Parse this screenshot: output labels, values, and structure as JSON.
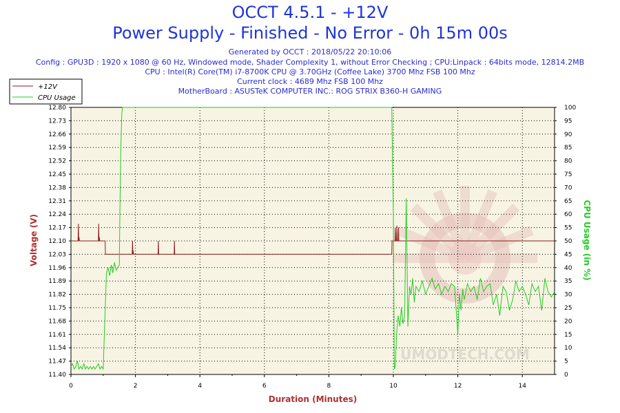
{
  "header": {
    "title": "OCCT 4.5.1 - +12V",
    "subtitle": "Power Supply - Finished - No Error - 0h 15m 00s",
    "generated": "Generated by OCCT : 2018/05/22 20:10:06",
    "config": "Config : GPU3D : 1920 x 1080 @ 60 Hz, Windowed mode, Shader Complexity 1, without Error Checking ; CPU:Linpack : 64bits mode, 12814.2MB",
    "cpu": "CPU : Intel(R) Core(TM) i7-8700K CPU @ 3.70GHz (Coffee Lake) 3700 Mhz FSB 100 Mhz",
    "clock": "Current clock : 4689 Mhz FSB 100 Mhz",
    "motherboard": "MotherBoard : ASUSTeK COMPUTER INC.: ROG STRIX B360-H GAMING"
  },
  "watermark": "UMODTECH.COM",
  "colors": {
    "title": "#1e34d8",
    "voltage": "#8b1a1a",
    "cpu": "#22cc22",
    "plot_bg": "#f7f4e3",
    "axis_label": "#b03030"
  },
  "chart_data": {
    "type": "line",
    "xlabel": "Duration (Minutes)",
    "ylabel": "Voltage (V)",
    "y2label": "CPU Usage (in %)",
    "xlim": [
      0,
      15
    ],
    "ylim": [
      11.4,
      12.8
    ],
    "y2lim": [
      0,
      100
    ],
    "x_ticks": [
      "0",
      "2",
      "4",
      "6",
      "8",
      "10",
      "12",
      "14"
    ],
    "y_ticks": [
      "11.40",
      "11.47",
      "11.54",
      "11.61",
      "11.68",
      "11.75",
      "11.82",
      "11.89",
      "11.96",
      "12.03",
      "12.10",
      "12.17",
      "12.24",
      "12.31",
      "12.38",
      "12.45",
      "12.52",
      "12.59",
      "12.66",
      "12.73",
      "12.80"
    ],
    "y2_ticks": [
      "0",
      "5",
      "10",
      "15",
      "20",
      "25",
      "30",
      "35",
      "40",
      "45",
      "50",
      "55",
      "60",
      "65",
      "70",
      "75",
      "80",
      "85",
      "90",
      "95",
      "100"
    ],
    "grid": true,
    "legend_position": "top-left",
    "series": [
      {
        "name": "+12V",
        "axis": "left",
        "x": [
          0,
          0.22,
          0.23,
          0.24,
          0.25,
          0.26,
          0.85,
          0.86,
          0.87,
          0.88,
          0.89,
          1.06,
          1.07,
          1.9,
          1.91,
          1.92,
          1.93,
          1.94,
          2.7,
          2.71,
          2.72,
          2.73,
          3.2,
          3.21,
          3.22,
          3.23,
          9.95,
          9.96,
          10.05,
          10.06,
          10.07,
          10.1,
          10.11,
          10.12,
          10.15,
          10.16,
          10.17,
          10.2,
          10.21,
          15
        ],
        "y": [
          12.1,
          12.1,
          12.19,
          12.1,
          12.12,
          12.1,
          12.1,
          12.19,
          12.1,
          12.12,
          12.1,
          12.1,
          12.03,
          12.03,
          12.1,
          12.03,
          12.05,
          12.03,
          12.03,
          12.1,
          12.03,
          12.03,
          12.03,
          12.1,
          12.03,
          12.03,
          12.03,
          12.1,
          12.1,
          12.17,
          12.1,
          12.1,
          12.18,
          12.1,
          12.1,
          12.17,
          12.1,
          12.1,
          12.1,
          12.1
        ]
      },
      {
        "name": "CPU Usage",
        "axis": "right",
        "x": [
          0,
          0.05,
          0.1,
          0.15,
          0.2,
          0.25,
          0.3,
          0.35,
          0.4,
          0.45,
          0.5,
          0.55,
          0.6,
          0.65,
          0.7,
          0.75,
          0.8,
          0.85,
          0.9,
          0.95,
          1.0,
          1.05,
          1.1,
          1.15,
          1.2,
          1.25,
          1.3,
          1.35,
          1.4,
          1.45,
          1.5,
          1.52,
          1.55,
          1.58,
          1.6,
          1.65,
          2,
          3,
          4,
          5,
          6,
          7,
          8,
          9,
          9.8,
          9.9,
          9.95,
          10.0,
          10.03,
          10.06,
          10.1,
          10.15,
          10.2,
          10.25,
          10.3,
          10.35,
          10.4,
          10.45,
          10.5,
          10.55,
          10.6,
          10.65,
          10.7,
          10.8,
          10.9,
          11.0,
          11.1,
          11.2,
          11.3,
          11.4,
          11.5,
          11.6,
          11.7,
          11.8,
          11.9,
          12.0,
          12.05,
          12.1,
          12.15,
          12.2,
          12.3,
          12.4,
          12.5,
          12.6,
          12.7,
          12.8,
          12.9,
          13.0,
          13.1,
          13.2,
          13.3,
          13.4,
          13.5,
          13.6,
          13.7,
          13.8,
          13.9,
          14.0,
          14.1,
          14.2,
          14.3,
          14.4,
          14.5,
          14.6,
          14.7,
          14.8,
          14.9,
          15.0
        ],
        "y": [
          3,
          4,
          2,
          3,
          5,
          2,
          3,
          2,
          4,
          2,
          3,
          2,
          3,
          2,
          3,
          2,
          3,
          4,
          2,
          3,
          2,
          20,
          38,
          40,
          37,
          41,
          38,
          42,
          39,
          40,
          41,
          62,
          86,
          98,
          100,
          100,
          100,
          100,
          100,
          100,
          100,
          100,
          100,
          100,
          100,
          100,
          100,
          60,
          2,
          3,
          15,
          22,
          18,
          25,
          19,
          22,
          66,
          18,
          33,
          30,
          36,
          27,
          33,
          31,
          35,
          30,
          33,
          36,
          32,
          34,
          30,
          33,
          31,
          34,
          33,
          15,
          30,
          24,
          32,
          28,
          34,
          31,
          33,
          28,
          36,
          31,
          33,
          34,
          26,
          30,
          22,
          33,
          31,
          24,
          28,
          35,
          31,
          33,
          30,
          26,
          34,
          31,
          33,
          24,
          36,
          31,
          29,
          31
        ]
      }
    ]
  }
}
